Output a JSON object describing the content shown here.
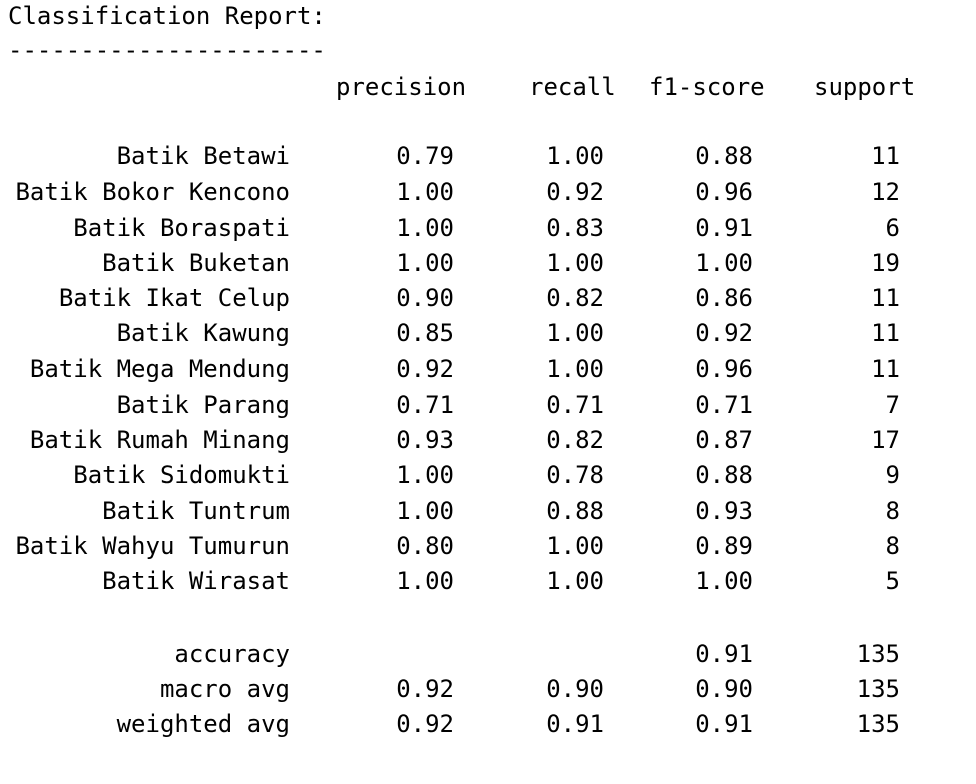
{
  "report": {
    "title": "Classification Report:",
    "separator": "----------------------",
    "headers": {
      "precision": "precision",
      "recall": "recall",
      "f1": "f1-score",
      "support": "support"
    },
    "classes": [
      {
        "label": "Batik Betawi",
        "precision": "0.79",
        "recall": "1.00",
        "f1": "0.88",
        "support": "11"
      },
      {
        "label": "Batik Bokor Kencono",
        "precision": "1.00",
        "recall": "0.92",
        "f1": "0.96",
        "support": "12"
      },
      {
        "label": "Batik Boraspati",
        "precision": "1.00",
        "recall": "0.83",
        "f1": "0.91",
        "support": "6"
      },
      {
        "label": "Batik Buketan",
        "precision": "1.00",
        "recall": "1.00",
        "f1": "1.00",
        "support": "19"
      },
      {
        "label": "Batik Ikat Celup",
        "precision": "0.90",
        "recall": "0.82",
        "f1": "0.86",
        "support": "11"
      },
      {
        "label": "Batik Kawung",
        "precision": "0.85",
        "recall": "1.00",
        "f1": "0.92",
        "support": "11"
      },
      {
        "label": "Batik Mega Mendung",
        "precision": "0.92",
        "recall": "1.00",
        "f1": "0.96",
        "support": "11"
      },
      {
        "label": "Batik Parang",
        "precision": "0.71",
        "recall": "0.71",
        "f1": "0.71",
        "support": "7"
      },
      {
        "label": "Batik Rumah Minang",
        "precision": "0.93",
        "recall": "0.82",
        "f1": "0.87",
        "support": "17"
      },
      {
        "label": "Batik Sidomukti",
        "precision": "1.00",
        "recall": "0.78",
        "f1": "0.88",
        "support": "9"
      },
      {
        "label": "Batik Tuntrum",
        "precision": "1.00",
        "recall": "0.88",
        "f1": "0.93",
        "support": "8"
      },
      {
        "label": "Batik Wahyu Tumurun",
        "precision": "0.80",
        "recall": "1.00",
        "f1": "0.89",
        "support": "8"
      },
      {
        "label": "Batik Wirasat",
        "precision": "1.00",
        "recall": "1.00",
        "f1": "1.00",
        "support": "5"
      }
    ],
    "summary": [
      {
        "label": "accuracy",
        "precision": "",
        "recall": "",
        "f1": "0.91",
        "support": "135"
      },
      {
        "label": "macro avg",
        "precision": "0.92",
        "recall": "0.90",
        "f1": "0.90",
        "support": "135"
      },
      {
        "label": "weighted avg",
        "precision": "0.92",
        "recall": "0.91",
        "f1": "0.91",
        "support": "135"
      }
    ]
  }
}
